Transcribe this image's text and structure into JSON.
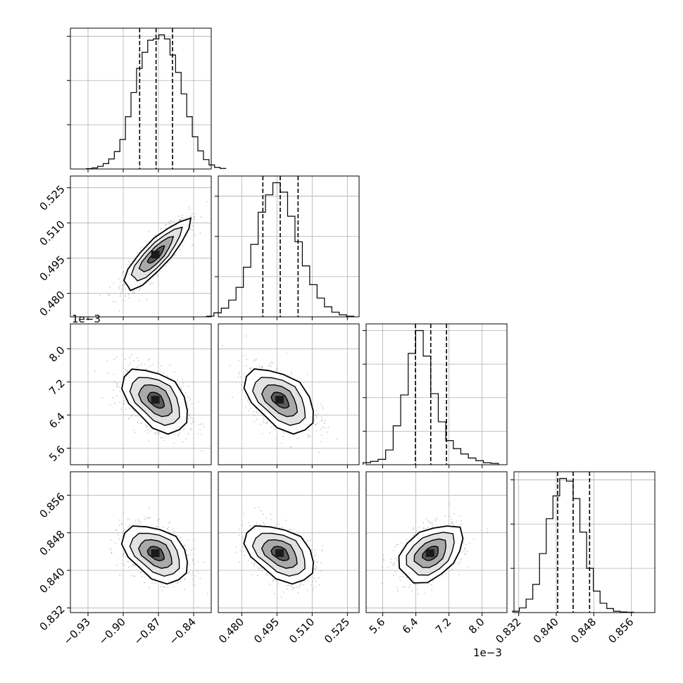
{
  "chart_data": {
    "type": "corner",
    "title": "",
    "parameters": [
      {
        "label": "",
        "range": [
          -0.945,
          -0.825
        ],
        "ticks": [
          -0.93,
          -0.9,
          -0.87,
          -0.84
        ],
        "tick_labels": [
          "−0.93",
          "−0.90",
          "−0.87",
          "−0.84"
        ],
        "mean": -0.872,
        "sigma": 0.0138,
        "quantiles": [
          -0.886,
          -0.872,
          -0.858
        ],
        "hist_counts": [
          0.3,
          0.8,
          2.0,
          4.0,
          7.5,
          13.0,
          22.0,
          39.0,
          57.0,
          75.0,
          87.0,
          96.0,
          97.0,
          100.0,
          97.0,
          85.0,
          72.0,
          56.0,
          39.0,
          24.0,
          13.5,
          7.0,
          3.0,
          1.2,
          0.4
        ],
        "hist_ticks": [
          33,
          66,
          99
        ]
      },
      {
        "label": "",
        "range": [
          0.47,
          0.53
        ],
        "ticks": [
          0.48,
          0.495,
          0.51,
          0.525
        ],
        "tick_labels": [
          "0.480",
          "0.495",
          "0.510",
          "0.525"
        ],
        "mean": 0.4964,
        "sigma": 0.0073,
        "quantiles": [
          0.489,
          0.4964,
          0.504
        ],
        "hist_counts": [
          0.5,
          3.0,
          6.5,
          12.5,
          22.0,
          37.0,
          54.0,
          78.0,
          91.0,
          100.0,
          93.0,
          75.0,
          56.0,
          38.0,
          24.0,
          14.0,
          7.5,
          3.5,
          1.5,
          0.5
        ],
        "hist_ticks": [
          30,
          60,
          90
        ]
      },
      {
        "label": "",
        "offset_label": "1e−3",
        "range": [
          5.2,
          8.6
        ],
        "ticks": [
          5.6,
          6.4,
          7.2,
          8.0
        ],
        "tick_labels": [
          "5.6",
          "6.4",
          "7.2",
          "8.0"
        ],
        "mean": 6.76,
        "sigma": 0.38,
        "quantiles": [
          6.39,
          6.76,
          7.14
        ],
        "hist_counts": [
          1.5,
          2.5,
          4.0,
          11.0,
          29.0,
          52.0,
          83.0,
          100.0,
          81.0,
          53.0,
          32.0,
          18.0,
          12.0,
          8.0,
          5.0,
          3.0,
          1.5,
          1.0
        ],
        "hist_ticks": [
          25,
          50,
          75,
          100
        ]
      },
      {
        "label": "",
        "range": [
          0.831,
          0.861
        ],
        "ticks": [
          0.832,
          0.84,
          0.848,
          0.856
        ],
        "tick_labels": [
          "0.832",
          "0.840",
          "0.848",
          "0.856"
        ],
        "mean": 0.8436,
        "sigma": 0.003,
        "quantiles": [
          0.8403,
          0.8436,
          0.8471
        ],
        "hist_counts": [
          1.0,
          3.5,
          10.0,
          21.0,
          44.0,
          70.0,
          87.0,
          100.0,
          98.0,
          85.0,
          60.0,
          33.0,
          16.0,
          7.0,
          3.0,
          1.0,
          0.5,
          0.3
        ],
        "hist_ticks": [
          33,
          66,
          99
        ]
      }
    ],
    "correlations": [
      {
        "i": 1,
        "j": 0,
        "rho": 0.85
      },
      {
        "i": 2,
        "j": 0,
        "rho": -0.45
      },
      {
        "i": 2,
        "j": 1,
        "rho": -0.48
      },
      {
        "i": 3,
        "j": 0,
        "rho": -0.4
      },
      {
        "i": 3,
        "j": 1,
        "rho": -0.42
      },
      {
        "i": 3,
        "j": 2,
        "rho": 0.4
      }
    ],
    "grid": true,
    "colors": {
      "hist": "#000000",
      "density": "#000000",
      "scatter": "#8c8c8c",
      "grid": "#b0b0b0"
    }
  }
}
